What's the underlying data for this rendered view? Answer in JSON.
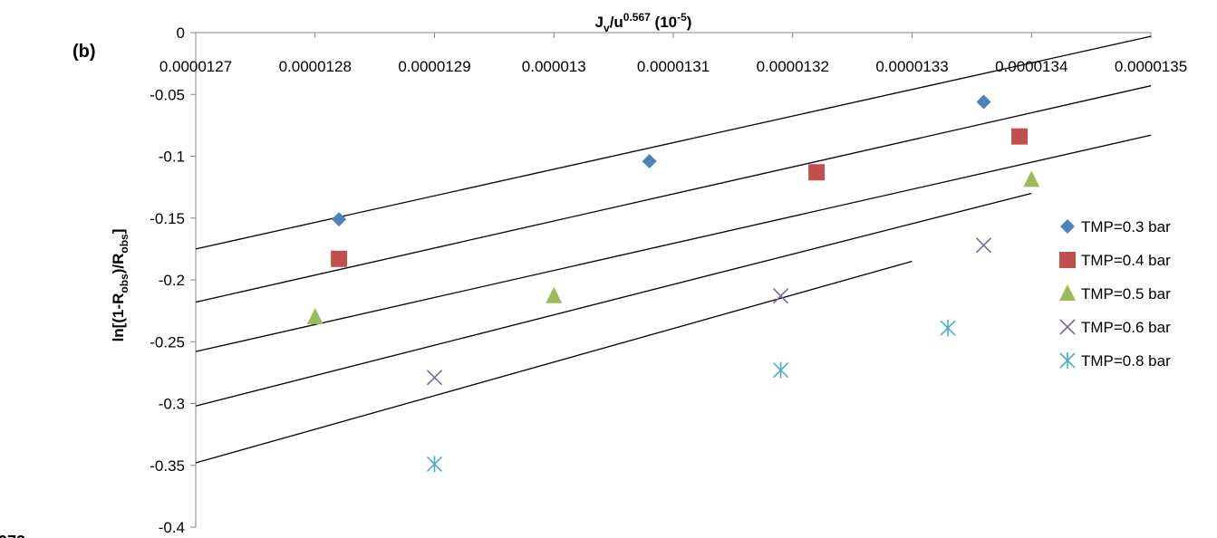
{
  "chart_data": {
    "type": "scatter",
    "panel_label": "(b)",
    "xlabel": "Jv/u0.567 (10-5)",
    "xlabel_parts": {
      "main": "J",
      "sub_v": "v",
      "mid": "/u",
      "sup_exp": "0.567",
      "paren_open": " (10",
      "sup_neg": "-5",
      "paren_close": ")"
    },
    "ylabel": "ln[(1-Robs)/Robs]",
    "ylabel_parts": {
      "p1": "ln[(1-R",
      "sub1": "obs",
      "p2": ")/R",
      "sub2": "obs",
      "p3": "]"
    },
    "xlim": [
      1.27e-05,
      1.35e-05
    ],
    "ylim": [
      -0.4,
      0
    ],
    "x_ticks": [
      "0.0000127",
      "0.0000128",
      "0.0000129",
      "0.000013",
      "0.0000131",
      "0.0000132",
      "0.0000133",
      "0.0000134",
      "0.0000135"
    ],
    "y_ticks": [
      "0",
      "-0.05",
      "-0.1",
      "-0.15",
      "-0.2",
      "-0.25",
      "-0.3",
      "-0.35",
      "-0.4"
    ],
    "legend_position": "right",
    "grid": false,
    "series": [
      {
        "name": "TMP=0.3 bar",
        "marker": "diamond",
        "color": "#4F81BD",
        "x": [
          1.282e-05,
          1.308e-05,
          1.336e-05
        ],
        "y": [
          -0.151,
          -0.104,
          -0.056
        ]
      },
      {
        "name": "TMP=0.4 bar",
        "marker": "square",
        "color": "#C0504D",
        "x": [
          1.282e-05,
          1.322e-05,
          1.339e-05
        ],
        "y": [
          -0.183,
          -0.113,
          -0.084
        ]
      },
      {
        "name": "TMP=0.5 bar",
        "marker": "triangle",
        "color": "#9BBB59",
        "x": [
          1.28e-05,
          1.3e-05,
          1.34e-05
        ],
        "y": [
          -0.23,
          -0.213,
          -0.119
        ]
      },
      {
        "name": "TMP=0.6 bar",
        "marker": "x",
        "color": "#8064A2",
        "x": [
          1.29e-05,
          1.319e-05,
          1.336e-05
        ],
        "y": [
          -0.279,
          -0.213,
          -0.172
        ]
      },
      {
        "name": "TMP=0.8 bar",
        "marker": "star",
        "color": "#4BACC6",
        "x": [
          1.29e-05,
          1.319e-05,
          1.333e-05
        ],
        "y": [
          -0.349,
          -0.273,
          -0.239
        ]
      }
    ],
    "trendlines": [
      {
        "series": "TMP=0.3 bar",
        "x": [
          1.27e-05,
          1.35e-05
        ],
        "y": [
          -0.175,
          -0.003
        ]
      },
      {
        "series": "TMP=0.4 bar",
        "x": [
          1.27e-05,
          1.35e-05
        ],
        "y": [
          -0.218,
          -0.043
        ]
      },
      {
        "series": "TMP=0.5 bar",
        "x": [
          1.27e-05,
          1.35e-05
        ],
        "y": [
          -0.258,
          -0.083
        ]
      },
      {
        "series": "TMP=0.6 bar",
        "x": [
          1.27e-05,
          1.34e-05
        ],
        "y": [
          -0.302,
          -0.13
        ]
      },
      {
        "series": "TMP=0.8 bar",
        "x": [
          1.27e-05,
          1.33e-05
        ],
        "y": [
          -0.348,
          -0.185
        ]
      }
    ],
    "clipped_text": "973"
  }
}
